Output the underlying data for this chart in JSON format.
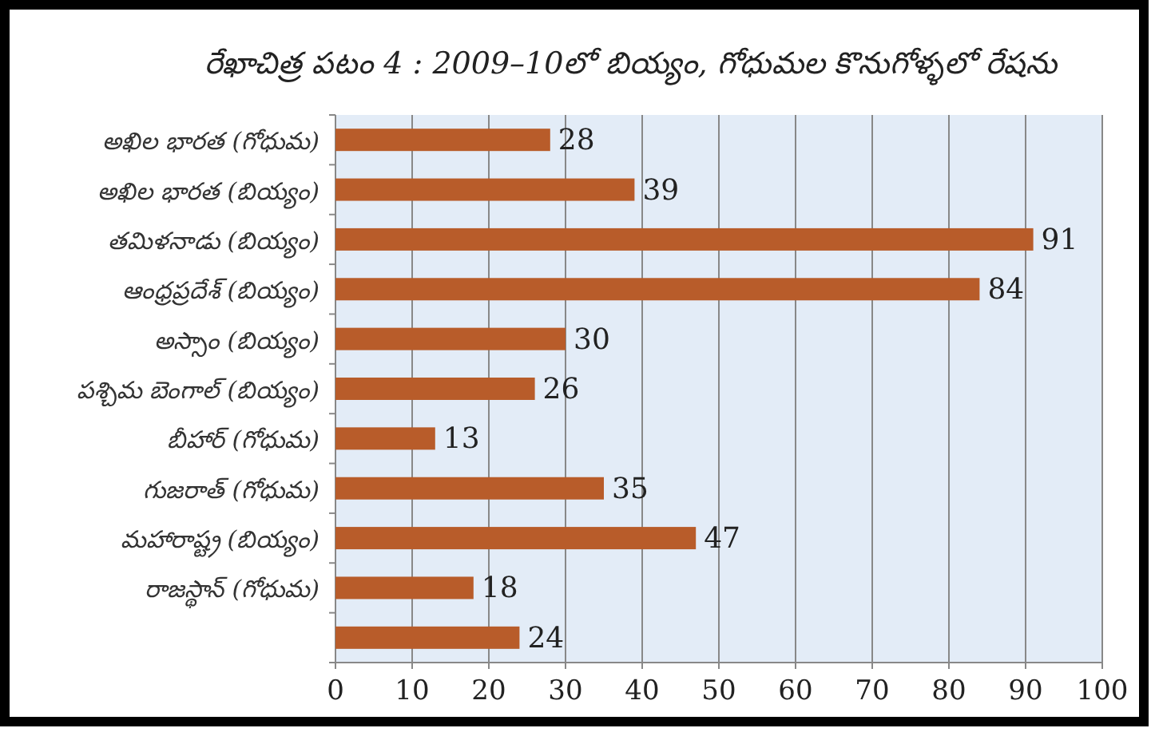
{
  "chart_data": {
    "type": "bar",
    "orientation": "horizontal",
    "title": "రేఖాచిత్ర పటం 4 : 2009–10లో బియ్యం, గోధుమల కొనుగోళ్ళలో రేషను",
    "categories": [
      "అఖిల భారత (గోధుమ)",
      "అఖిల భారత (బియ్యం)",
      "తమిళనాడు (బియ్యం)",
      "ఆంధ్రప్రదేశ్ (బియ్యం)",
      "అస్సాం (బియ్యం)",
      "పశ్చిమ బెంగాల్ (బియ్యం)",
      "బీహార్ (గోధుమ)",
      "గుజరాత్ (గోధుమ)",
      "మహారాష్ట్ర (బియ్యం)",
      "రాజస్థాన్ (గోధుమ)",
      null
    ],
    "values": [
      28,
      39,
      91,
      84,
      30,
      26,
      13,
      35,
      47,
      18,
      24
    ],
    "color": "#b85c2a",
    "xlim": [
      0,
      100
    ],
    "xticks": [
      0,
      10,
      20,
      30,
      40,
      50,
      60,
      70,
      80,
      90,
      100
    ],
    "grid": "x",
    "data_labels": true
  }
}
